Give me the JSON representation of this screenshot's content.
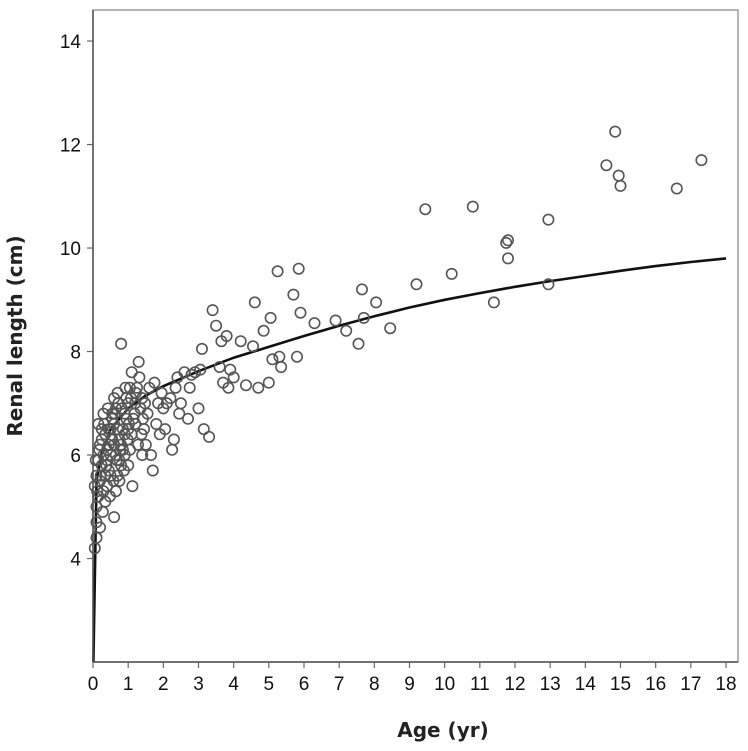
{
  "chart_data": {
    "type": "scatter",
    "xlabel": "Age (yr)",
    "ylabel": "Renal length (cm)",
    "xlim": [
      0,
      18
    ],
    "ylim": [
      2,
      14.6
    ],
    "xticks": [
      "0",
      "1",
      "2",
      "3",
      "4",
      "5",
      "6",
      "7",
      "8",
      "9",
      "10",
      "11",
      "12",
      "13",
      "14",
      "15",
      "16",
      "17",
      "18"
    ],
    "yticks": [
      "4",
      "6",
      "8",
      "10",
      "12",
      "14"
    ],
    "grid": false,
    "legend": "none",
    "colors": {
      "points": "#555555",
      "curve": "#111111",
      "axis": "#888888"
    },
    "fit_curve": {
      "label": "",
      "x": [
        0.01,
        0.1,
        0.25,
        0.5,
        1,
        1.5,
        2,
        3,
        4,
        5,
        6,
        7,
        8,
        9,
        10,
        11,
        12,
        13,
        14,
        15,
        16,
        17,
        18
      ],
      "y": [
        2.0,
        5.5,
        6.05,
        6.5,
        6.9,
        7.15,
        7.33,
        7.62,
        7.88,
        8.09,
        8.3,
        8.5,
        8.68,
        8.85,
        9.0,
        9.13,
        9.25,
        9.36,
        9.46,
        9.56,
        9.65,
        9.73,
        9.8
      ]
    },
    "points": [
      [
        0.05,
        4.2
      ],
      [
        0.1,
        4.4
      ],
      [
        0.1,
        4.7
      ],
      [
        0.1,
        5.0
      ],
      [
        0.15,
        5.2
      ],
      [
        0.2,
        5.5
      ],
      [
        0.25,
        5.8
      ],
      [
        0.3,
        6.0
      ],
      [
        0.1,
        5.6
      ],
      [
        0.15,
        5.9
      ],
      [
        0.2,
        6.2
      ],
      [
        0.25,
        6.5
      ],
      [
        0.3,
        6.8
      ],
      [
        0.35,
        5.1
      ],
      [
        0.4,
        5.4
      ],
      [
        0.45,
        5.7
      ],
      [
        0.5,
        6.0
      ],
      [
        0.55,
        6.3
      ],
      [
        0.6,
        6.6
      ],
      [
        0.65,
        6.9
      ],
      [
        0.7,
        7.2
      ],
      [
        0.75,
        5.5
      ],
      [
        0.8,
        5.8
      ],
      [
        0.85,
        6.1
      ],
      [
        0.9,
        6.4
      ],
      [
        0.95,
        6.7
      ],
      [
        1.0,
        7.0
      ],
      [
        1.05,
        7.3
      ],
      [
        0.3,
        5.3
      ],
      [
        0.35,
        5.6
      ],
      [
        0.4,
        5.9
      ],
      [
        0.45,
        6.2
      ],
      [
        0.5,
        6.5
      ],
      [
        0.55,
        6.8
      ],
      [
        0.6,
        7.1
      ],
      [
        0.65,
        5.3
      ],
      [
        0.7,
        5.6
      ],
      [
        0.75,
        5.9
      ],
      [
        0.8,
        6.2
      ],
      [
        0.85,
        6.5
      ],
      [
        0.9,
        6.8
      ],
      [
        0.95,
        7.1
      ],
      [
        1.0,
        5.8
      ],
      [
        1.05,
        6.1
      ],
      [
        1.1,
        6.4
      ],
      [
        1.15,
        6.7
      ],
      [
        1.2,
        7.0
      ],
      [
        1.25,
        7.3
      ],
      [
        0.6,
        4.8
      ],
      [
        0.2,
        4.6
      ],
      [
        0.15,
        6.6
      ],
      [
        0.25,
        6.3
      ],
      [
        0.35,
        6.4
      ],
      [
        0.45,
        6.5
      ],
      [
        0.55,
        6.7
      ],
      [
        0.65,
        6.0
      ],
      [
        0.75,
        6.3
      ],
      [
        0.8,
        8.15
      ],
      [
        1.1,
        7.6
      ],
      [
        1.3,
        7.8
      ],
      [
        1.35,
        6.9
      ],
      [
        1.4,
        7.1
      ],
      [
        1.45,
        6.5
      ],
      [
        1.5,
        6.2
      ],
      [
        1.55,
        6.8
      ],
      [
        1.6,
        7.3
      ],
      [
        1.65,
        6.0
      ],
      [
        1.7,
        5.7
      ],
      [
        1.75,
        7.4
      ],
      [
        1.8,
        6.6
      ],
      [
        1.85,
        7.0
      ],
      [
        1.9,
        6.4
      ],
      [
        1.95,
        7.2
      ],
      [
        2.0,
        6.9
      ],
      [
        2.05,
        6.5
      ],
      [
        2.1,
        7.0
      ],
      [
        2.2,
        7.1
      ],
      [
        2.25,
        6.1
      ],
      [
        2.3,
        6.3
      ],
      [
        2.35,
        7.3
      ],
      [
        2.4,
        7.5
      ],
      [
        2.45,
        6.8
      ],
      [
        2.5,
        7.0
      ],
      [
        2.6,
        7.6
      ],
      [
        2.7,
        6.7
      ],
      [
        2.75,
        7.3
      ],
      [
        2.8,
        7.55
      ],
      [
        2.9,
        7.6
      ],
      [
        3.0,
        6.9
      ],
      [
        3.05,
        7.65
      ],
      [
        3.1,
        8.05
      ],
      [
        3.15,
        6.5
      ],
      [
        3.3,
        6.35
      ],
      [
        3.4,
        8.8
      ],
      [
        3.5,
        8.5
      ],
      [
        3.6,
        7.7
      ],
      [
        3.65,
        8.2
      ],
      [
        3.7,
        7.4
      ],
      [
        3.8,
        8.3
      ],
      [
        3.85,
        7.3
      ],
      [
        3.9,
        7.65
      ],
      [
        4.0,
        7.5
      ],
      [
        4.2,
        8.2
      ],
      [
        4.35,
        7.35
      ],
      [
        4.55,
        8.1
      ],
      [
        4.6,
        8.95
      ],
      [
        4.7,
        7.3
      ],
      [
        4.85,
        8.4
      ],
      [
        5.0,
        7.4
      ],
      [
        5.05,
        8.65
      ],
      [
        5.1,
        7.85
      ],
      [
        5.25,
        9.55
      ],
      [
        5.3,
        7.9
      ],
      [
        5.35,
        7.7
      ],
      [
        5.7,
        9.1
      ],
      [
        5.85,
        9.6
      ],
      [
        5.8,
        7.9
      ],
      [
        5.9,
        8.75
      ],
      [
        6.3,
        8.55
      ],
      [
        6.9,
        8.6
      ],
      [
        7.2,
        8.4
      ],
      [
        7.55,
        8.15
      ],
      [
        7.65,
        9.2
      ],
      [
        7.7,
        8.65
      ],
      [
        8.05,
        8.95
      ],
      [
        8.45,
        8.45
      ],
      [
        9.2,
        9.3
      ],
      [
        9.45,
        10.75
      ],
      [
        10.2,
        9.5
      ],
      [
        10.8,
        10.8
      ],
      [
        11.4,
        8.95
      ],
      [
        11.75,
        10.1
      ],
      [
        11.8,
        9.8
      ],
      [
        11.8,
        10.15
      ],
      [
        12.95,
        10.55
      ],
      [
        12.95,
        9.3
      ],
      [
        14.6,
        11.6
      ],
      [
        14.85,
        12.25
      ],
      [
        14.95,
        11.4
      ],
      [
        15.0,
        11.2
      ],
      [
        16.6,
        11.15
      ],
      [
        17.3,
        11.7
      ],
      [
        0.4,
        6.1
      ],
      [
        0.5,
        5.6
      ],
      [
        0.6,
        6.2
      ],
      [
        0.7,
        6.5
      ],
      [
        0.9,
        6.0
      ],
      [
        1.0,
        6.5
      ],
      [
        1.2,
        6.6
      ],
      [
        1.4,
        6.0
      ],
      [
        0.05,
        5.4
      ],
      [
        0.08,
        5.9
      ],
      [
        0.12,
        5.3
      ],
      [
        0.18,
        6.1
      ],
      [
        0.22,
        5.6
      ],
      [
        0.28,
        4.9
      ],
      [
        0.32,
        6.6
      ],
      [
        0.38,
        5.8
      ],
      [
        0.42,
        6.9
      ],
      [
        0.48,
        5.2
      ],
      [
        0.52,
        6.3
      ],
      [
        0.58,
        5.5
      ],
      [
        0.62,
        6.8
      ],
      [
        0.68,
        5.9
      ],
      [
        0.72,
        7.0
      ],
      [
        0.78,
        6.1
      ],
      [
        0.82,
        6.9
      ],
      [
        0.88,
        5.7
      ],
      [
        0.92,
        7.3
      ],
      [
        0.98,
        6.3
      ],
      [
        1.02,
        6.6
      ],
      [
        1.08,
        7.1
      ],
      [
        1.12,
        5.4
      ],
      [
        1.18,
        6.8
      ],
      [
        1.22,
        7.2
      ],
      [
        1.28,
        6.2
      ],
      [
        1.32,
        7.5
      ],
      [
        1.38,
        6.4
      ],
      [
        1.42,
        6.7
      ],
      [
        1.48,
        7.0
      ]
    ]
  }
}
